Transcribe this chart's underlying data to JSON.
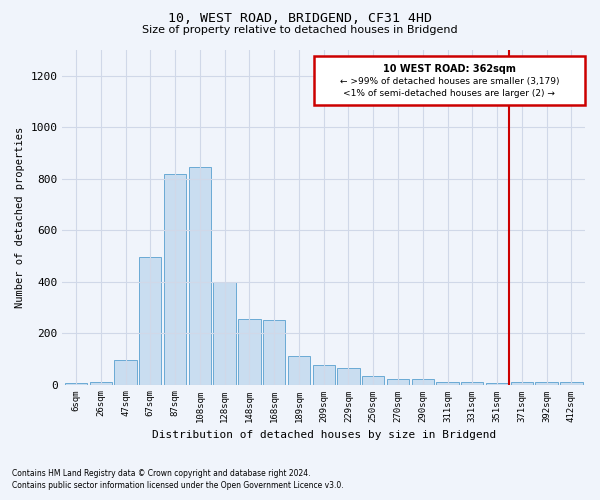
{
  "title": "10, WEST ROAD, BRIDGEND, CF31 4HD",
  "subtitle": "Size of property relative to detached houses in Bridgend",
  "xlabel": "Distribution of detached houses by size in Bridgend",
  "ylabel": "Number of detached properties",
  "bar_labels": [
    "6sqm",
    "26sqm",
    "47sqm",
    "67sqm",
    "87sqm",
    "108sqm",
    "128sqm",
    "148sqm",
    "168sqm",
    "189sqm",
    "209sqm",
    "229sqm",
    "250sqm",
    "270sqm",
    "290sqm",
    "311sqm",
    "331sqm",
    "351sqm",
    "371sqm",
    "392sqm",
    "412sqm"
  ],
  "bar_values": [
    5,
    10,
    95,
    495,
    820,
    845,
    400,
    255,
    250,
    110,
    75,
    65,
    35,
    20,
    20,
    10,
    8,
    5,
    10,
    8,
    10
  ],
  "bar_color": "#c9ddf0",
  "bar_edge_color": "#6aaad4",
  "vline_x": 17.5,
  "vline_color": "#cc0000",
  "annotation_title": "10 WEST ROAD: 362sqm",
  "annotation_line1": "← >99% of detached houses are smaller (3,179)",
  "annotation_line2": "<1% of semi-detached houses are larger (2) →",
  "ylim": [
    0,
    1300
  ],
  "yticks": [
    0,
    200,
    400,
    600,
    800,
    1000,
    1200
  ],
  "footer_line1": "Contains HM Land Registry data © Crown copyright and database right 2024.",
  "footer_line2": "Contains public sector information licensed under the Open Government Licence v3.0.",
  "bg_color": "#f0f4fb",
  "plot_bg_color": "#f0f4fb",
  "grid_color": "#d0d8e8"
}
